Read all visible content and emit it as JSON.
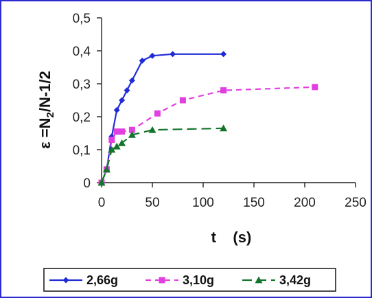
{
  "chart_data": {
    "type": "line",
    "title": "",
    "xlabel": "t    (s)",
    "ylabel_prefix": "ε =N",
    "ylabel_sub": "2",
    "ylabel_suffix": "/N-1/2",
    "xlim": [
      0,
      250
    ],
    "ylim": [
      0,
      0.5
    ],
    "x_ticks": [
      0,
      50,
      100,
      150,
      200,
      250
    ],
    "x_tick_labels": [
      "0",
      "50",
      "100",
      "150",
      "200",
      "250"
    ],
    "y_ticks": [
      0,
      0.1,
      0.2,
      0.3,
      0.4,
      0.5
    ],
    "y_tick_labels": [
      "0",
      "0,1",
      "0,2",
      "0,3",
      "0,4",
      "0,5"
    ],
    "grid": false,
    "legend_position": "bottom",
    "series": [
      {
        "name": "2,66g",
        "color": "#1f2bd6",
        "marker": "diamond",
        "dash": "solid",
        "x": [
          0,
          5,
          10,
          15,
          20,
          25,
          30,
          40,
          50,
          70,
          120
        ],
        "y": [
          0,
          0.04,
          0.14,
          0.22,
          0.25,
          0.28,
          0.31,
          0.37,
          0.385,
          0.39,
          0.39
        ]
      },
      {
        "name": "3,10g",
        "color": "#e23fe0",
        "marker": "square",
        "dash": "dashed",
        "x": [
          0,
          5,
          10,
          15,
          20,
          30,
          55,
          80,
          120,
          210
        ],
        "y": [
          0,
          0.04,
          0.13,
          0.155,
          0.155,
          0.16,
          0.21,
          0.25,
          0.28,
          0.29
        ]
      },
      {
        "name": "3,42g",
        "color": "#13752a",
        "marker": "triangle",
        "dash": "longdash",
        "x": [
          0,
          5,
          10,
          15,
          20,
          30,
          50,
          120
        ],
        "y": [
          0,
          0.04,
          0.1,
          0.11,
          0.12,
          0.145,
          0.16,
          0.165
        ]
      }
    ]
  }
}
